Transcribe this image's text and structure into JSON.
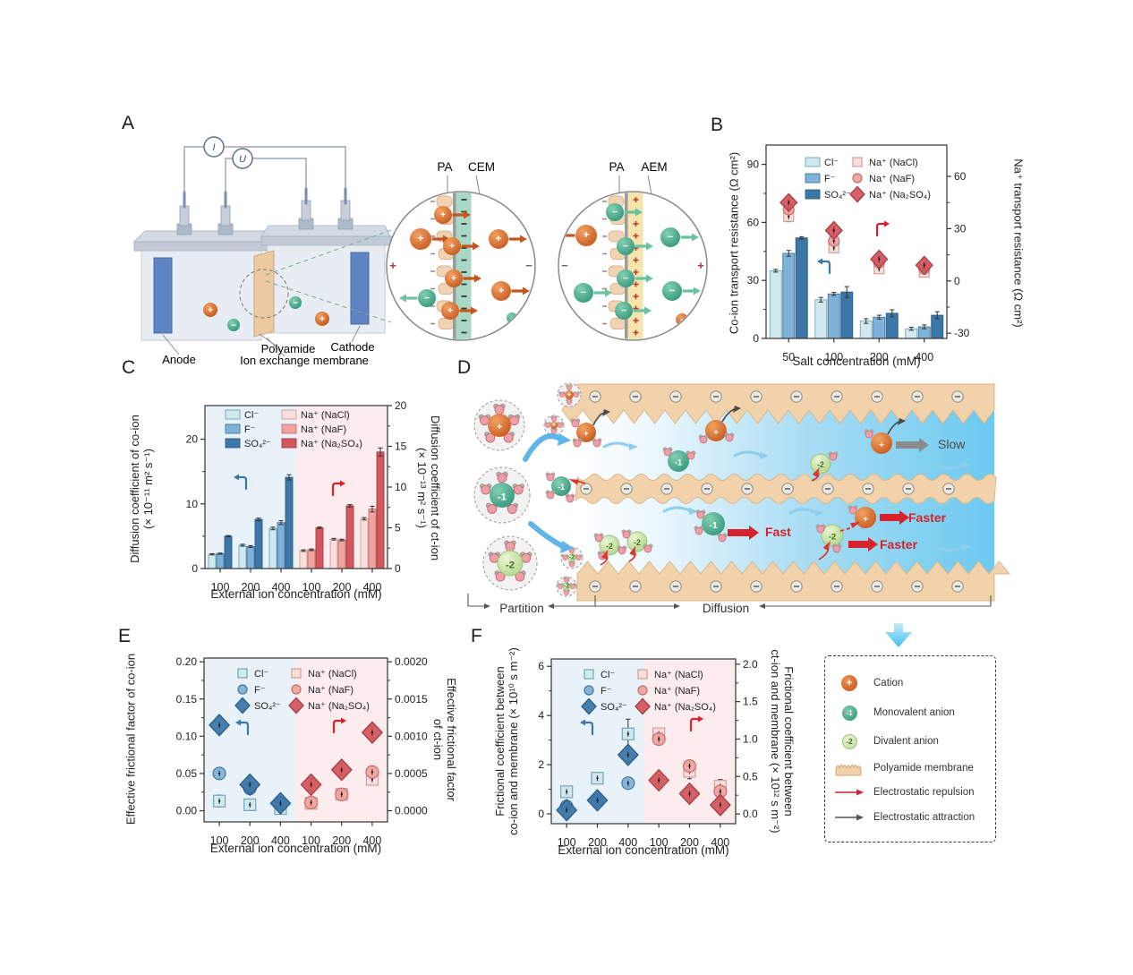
{
  "figure": {
    "background": "#ffffff"
  },
  "symbols": {
    "plus": "+",
    "minus": "−",
    "m1": "-1",
    "m2": "-2"
  },
  "panels": {
    "a": {
      "letter": "A",
      "meter_current": "I",
      "meter_voltage": "U",
      "anode": "Anode",
      "cathode": "Cathode",
      "membrane_line1": "Polyamide",
      "membrane_line2": "Ion exchange membrane"
    },
    "b": {
      "letter": "B"
    },
    "c": {
      "letter": "C"
    },
    "d": {
      "letter": "D",
      "slow": "Slow",
      "fast": "Fast",
      "faster_top": "Faster",
      "faster_bottom": "Faster",
      "partition": "Partition",
      "diffusion": "Diffusion"
    },
    "e": {
      "letter": "E"
    },
    "f": {
      "letter": "F"
    }
  },
  "insets": {
    "left": {
      "layer1": "PA",
      "layer2": "CEM"
    },
    "right": {
      "layer1": "PA",
      "layer2": "AEM"
    }
  },
  "chart_data": [
    {
      "id": "B",
      "type": "bar",
      "xlabel": "Salt concentration (mM)",
      "ylabel_left": "Co-ion transport resistance (Ω cm²)",
      "ylabel_right": "Na⁺ transport resistance (Ω cm²)",
      "categories": [
        "50",
        "100",
        "200",
        "400"
      ],
      "left_axis": {
        "min": 0,
        "max": 100,
        "ticks": [
          0,
          30,
          60,
          90
        ],
        "tick_labels": [
          "0",
          "30",
          "60",
          "90"
        ]
      },
      "right_axis": {
        "min": -33,
        "max": 78,
        "ticks": [
          -30,
          0,
          30,
          60
        ],
        "tick_labels": [
          "-30",
          "0",
          "30",
          "60"
        ]
      },
      "bar_series": [
        {
          "name": "Cl⁻",
          "axis": "left",
          "color": "#cfe9ee",
          "stroke": "#74a5b5",
          "values": [
            35,
            20,
            9,
            5
          ],
          "errors": [
            0.7,
            1.2,
            1.2,
            0.8
          ]
        },
        {
          "name": "F⁻",
          "axis": "left",
          "color": "#7fb2d8",
          "stroke": "#44759f",
          "values": [
            44,
            23,
            11,
            6
          ],
          "errors": [
            1.5,
            0.8,
            1.0,
            1.0
          ]
        },
        {
          "name": "SO₄²⁻",
          "axis": "left",
          "color": "#3d77a8",
          "stroke": "#295a85",
          "values": [
            52,
            24,
            13,
            12
          ],
          "errors": [
            0.6,
            2.8,
            1.8,
            1.8
          ]
        }
      ],
      "marker_series": [
        {
          "name": "Na⁺ (NaCl)",
          "axis": "right",
          "shape": "square",
          "color": "#fadedb",
          "stroke": "#cfa09d",
          "values": [
            37,
            19,
            7,
            5
          ],
          "errors": [
            3,
            2,
            1.5,
            1.5
          ]
        },
        {
          "name": "Na⁺ (NaF)",
          "axis": "right",
          "shape": "circle",
          "color": "#f0a39f",
          "stroke": "#c4706c",
          "values": [
            41,
            23,
            10.5,
            7
          ],
          "errors": [
            2.5,
            2,
            1.5,
            1.5
          ]
        },
        {
          "name": "Na⁺ (Na₂SO₄)",
          "axis": "right",
          "shape": "diamond",
          "color": "#d4575e",
          "stroke": "#9e3a44",
          "values": [
            45,
            29,
            12.5,
            9
          ],
          "errors": [
            3,
            2.5,
            2,
            2
          ]
        }
      ]
    },
    {
      "id": "C",
      "type": "bar",
      "xlabel": "External ion concentration (mM)",
      "ylabel_left": "Diffusion coefficient of co-ion",
      "ylabel_left2": "(× 10⁻¹¹ m² s⁻¹)",
      "ylabel_right": "Diffusion coefficient of ct-ion",
      "ylabel_right2": "(× 10⁻¹³ m² s⁻¹)",
      "categories": [
        "100",
        "200",
        "400",
        "100",
        "200",
        "400"
      ],
      "bg_split": {
        "split_at": 3,
        "left_color": "#e9f2f8",
        "right_color": "#fcecee"
      },
      "left_axis": {
        "min": 0,
        "max": 25.2,
        "ticks": [
          0,
          10,
          20
        ],
        "tick_labels": [
          "0",
          "10",
          "20"
        ]
      },
      "right_axis": {
        "min": 0,
        "max": 20,
        "ticks": [
          0,
          5,
          10,
          15,
          20
        ],
        "tick_labels": [
          "0",
          "5",
          "10",
          "15",
          "20"
        ]
      },
      "bar_series": [
        {
          "name": "Cl⁻",
          "axis": "left",
          "color": "#cfe9ee",
          "stroke": "#74a5b5",
          "values": [
            2.2,
            3.6,
            6.2,
            null,
            null,
            null
          ],
          "errors": [
            0.1,
            0.15,
            0.2,
            null,
            null,
            null
          ]
        },
        {
          "name": "F⁻",
          "axis": "left",
          "color": "#7fb2d8",
          "stroke": "#44759f",
          "values": [
            2.3,
            3.4,
            7.1,
            null,
            null,
            null
          ],
          "errors": [
            0.1,
            0.15,
            0.3,
            null,
            null,
            null
          ]
        },
        {
          "name": "SO₄²⁻",
          "axis": "left",
          "color": "#3d77a8",
          "stroke": "#295a85",
          "values": [
            5.0,
            7.6,
            14.1,
            null,
            null,
            null
          ],
          "errors": [
            0.1,
            0.2,
            0.4,
            null,
            null,
            null
          ]
        },
        {
          "name": "Na⁺ (NaCl)",
          "axis": "right",
          "color": "#fadedb",
          "stroke": "#cfa09d",
          "values": [
            null,
            null,
            null,
            2.2,
            3.6,
            6.1
          ],
          "errors": [
            null,
            null,
            null,
            0.1,
            0.1,
            0.15
          ]
        },
        {
          "name": "Na⁺ (NaF)",
          "axis": "right",
          "color": "#f0a39f",
          "stroke": "#c4706c",
          "values": [
            null,
            null,
            null,
            2.3,
            3.5,
            7.3
          ],
          "errors": [
            null,
            null,
            null,
            0.1,
            0.1,
            0.35
          ]
        },
        {
          "name": "Na⁺ (Na₂SO₄)",
          "axis": "right",
          "color": "#d4575e",
          "stroke": "#9e3a44",
          "values": [
            null,
            null,
            null,
            5.0,
            7.7,
            14.3
          ],
          "errors": [
            null,
            null,
            null,
            0.1,
            0.15,
            0.5
          ]
        }
      ]
    },
    {
      "id": "E",
      "type": "scatter",
      "xlabel": "External ion concentration (mM)",
      "ylabel_left": "Effective frictional factor of co-ion",
      "ylabel_right": "Effective frictional factor",
      "ylabel_right2": "of ct-ion",
      "categories": [
        "100",
        "200",
        "400",
        "100",
        "200",
        "400"
      ],
      "bg_split": {
        "split_at": 3,
        "left_color": "#e9f2f8",
        "right_color": "#fcecee"
      },
      "left_axis": {
        "min": -0.015,
        "max": 0.205,
        "ticks": [
          0.0,
          0.05,
          0.1,
          0.15,
          0.2
        ],
        "tick_labels": [
          "0.00",
          "0.05",
          "0.10",
          "0.15",
          "0.20"
        ]
      },
      "right_axis": {
        "min": -0.00015,
        "max": 0.00205,
        "ticks": [
          0.0,
          0.0005,
          0.001,
          0.0015,
          0.002
        ],
        "tick_labels": [
          "0.0000",
          "0.0005",
          "0.0010",
          "0.0015",
          "0.0020"
        ]
      },
      "marker_series": [
        {
          "name": "Cl⁻",
          "axis": "left",
          "shape": "square",
          "color": "#cfe9ee",
          "stroke": "#74a5b5",
          "values": [
            0.013,
            0.008,
            0.003,
            null,
            null,
            null
          ],
          "errors": [
            0.008,
            0.007,
            0.007,
            null,
            null,
            null
          ]
        },
        {
          "name": "F⁻",
          "axis": "left",
          "shape": "circle",
          "color": "#7fb2d8",
          "stroke": "#44759f",
          "values": [
            0.05,
            0.03,
            0.01,
            null,
            null,
            null
          ],
          "errors": [
            0.007,
            0.006,
            0.006,
            null,
            null,
            null
          ]
        },
        {
          "name": "SO₄²⁻",
          "axis": "left",
          "shape": "diamond",
          "color": "#3d77a8",
          "stroke": "#295a85",
          "values": [
            0.115,
            0.035,
            0.01,
            null,
            null,
            null
          ],
          "errors": [
            0.012,
            0.008,
            0.009,
            null,
            null,
            null
          ]
        },
        {
          "name": "Na⁺ (NaCl)",
          "axis": "right",
          "shape": "square",
          "color": "#fadedb",
          "stroke": "#cfa09d",
          "values": [
            null,
            null,
            null,
            0.0001,
            0.00022,
            0.00042
          ],
          "errors": [
            null,
            null,
            null,
            6e-05,
            4e-05,
            6e-05
          ]
        },
        {
          "name": "Na⁺ (NaF)",
          "axis": "right",
          "shape": "circle",
          "color": "#f0a39f",
          "stroke": "#c4706c",
          "values": [
            null,
            null,
            null,
            0.00011,
            0.00022,
            0.00052
          ],
          "errors": [
            null,
            null,
            null,
            5e-05,
            4e-05,
            7e-05
          ]
        },
        {
          "name": "Na⁺ (Na₂SO₄)",
          "axis": "right",
          "shape": "diamond",
          "color": "#d4575e",
          "stroke": "#9e3a44",
          "values": [
            null,
            null,
            null,
            0.00035,
            0.00055,
            0.00105
          ],
          "errors": [
            null,
            null,
            null,
            8e-05,
            8e-05,
            8e-05
          ]
        }
      ]
    },
    {
      "id": "F",
      "type": "scatter",
      "xlabel": "External ion concentration (mM)",
      "ylabel_left": "Frictional coefficient between",
      "ylabel_left2": "co-ion and membrane (× 10¹⁰ s m⁻²)",
      "ylabel_right": "Frictional coefficient between",
      "ylabel_right2": "ct-ion and membrane (× 10¹² s m⁻²)",
      "categories": [
        "100",
        "200",
        "400",
        "100",
        "200",
        "400"
      ],
      "bg_split": {
        "split_at": 3,
        "left_color": "#e9f2f8",
        "right_color": "#fcecee"
      },
      "left_axis": {
        "min": -0.4,
        "max": 6.3,
        "ticks": [
          0,
          2,
          4,
          6
        ],
        "tick_labels": [
          "0",
          "2",
          "4",
          "6"
        ]
      },
      "right_axis": {
        "min": -0.13,
        "max": 2.07,
        "ticks": [
          0.0,
          0.5,
          1.0,
          1.5,
          2.0
        ],
        "tick_labels": [
          "0.0",
          "0.5",
          "1.0",
          "1.5",
          "2.0"
        ]
      },
      "marker_series": [
        {
          "name": "Cl⁻",
          "axis": "left",
          "shape": "square",
          "color": "#cfe9ee",
          "stroke": "#74a5b5",
          "values": [
            0.9,
            1.45,
            3.25,
            null,
            null,
            null
          ],
          "errors": [
            0.15,
            0.12,
            0.6,
            null,
            null,
            null
          ]
        },
        {
          "name": "F⁻",
          "axis": "left",
          "shape": "circle",
          "color": "#7fb2d8",
          "stroke": "#44759f",
          "values": [
            0.3,
            0.55,
            1.25,
            null,
            null,
            null
          ],
          "errors": [
            0.12,
            0.1,
            0.15,
            null,
            null,
            null
          ]
        },
        {
          "name": "SO₄²⁻",
          "axis": "left",
          "shape": "diamond",
          "color": "#3d77a8",
          "stroke": "#295a85",
          "values": [
            0.15,
            0.55,
            2.4,
            null,
            null,
            null
          ],
          "errors": [
            0.1,
            0.12,
            0.35,
            null,
            null,
            null
          ]
        },
        {
          "name": "Na⁺ (NaCl)",
          "axis": "right",
          "shape": "square",
          "color": "#fadedb",
          "stroke": "#cfa09d",
          "values": [
            null,
            null,
            null,
            1.07,
            0.57,
            0.37
          ],
          "errors": [
            null,
            null,
            null,
            0.07,
            0.1,
            0.09
          ]
        },
        {
          "name": "Na⁺ (NaF)",
          "axis": "right",
          "shape": "circle",
          "color": "#f0a39f",
          "stroke": "#c4706c",
          "values": [
            null,
            null,
            null,
            1.0,
            0.64,
            0.3
          ],
          "errors": [
            null,
            null,
            null,
            0.06,
            0.07,
            0.06
          ]
        },
        {
          "name": "Na⁺ (Na₂SO₄)",
          "axis": "right",
          "shape": "diamond",
          "color": "#d4575e",
          "stroke": "#9e3a44",
          "values": [
            null,
            null,
            null,
            0.45,
            0.27,
            0.12
          ],
          "errors": [
            null,
            null,
            null,
            0.07,
            0.09,
            0.08
          ]
        }
      ]
    }
  ],
  "legend_box": {
    "items": [
      {
        "icon": "cation-ball",
        "icon_label": "+",
        "label": "Cation"
      },
      {
        "icon": "monovalent-ball",
        "icon_label": "-1",
        "label": "Monovalent anion"
      },
      {
        "icon": "divalent-ball",
        "icon_label": "-2",
        "label": "Divalent anion"
      },
      {
        "icon": "polyamide-membrane",
        "label": "Polyamide membrane"
      },
      {
        "icon": "red-arrow",
        "label": "Electrostatic repulsion"
      },
      {
        "icon": "black-arrow",
        "label": "Electrostatic attraction"
      }
    ]
  },
  "colors": {
    "cl": "#cfe9ee",
    "f": "#7fb2d8",
    "so4": "#3d77a8",
    "nacl": "#fadedb",
    "naf": "#f0a39f",
    "na2so4": "#d4575e",
    "left_axis_arrow": "#3d77a8",
    "right_axis_arrow": "#d6222a",
    "membrane_tan": "#f2d2ab",
    "channel_blue": "#6cc9f0",
    "fast_red": "#d6222a",
    "slow_gray": "#8b8b8b"
  }
}
